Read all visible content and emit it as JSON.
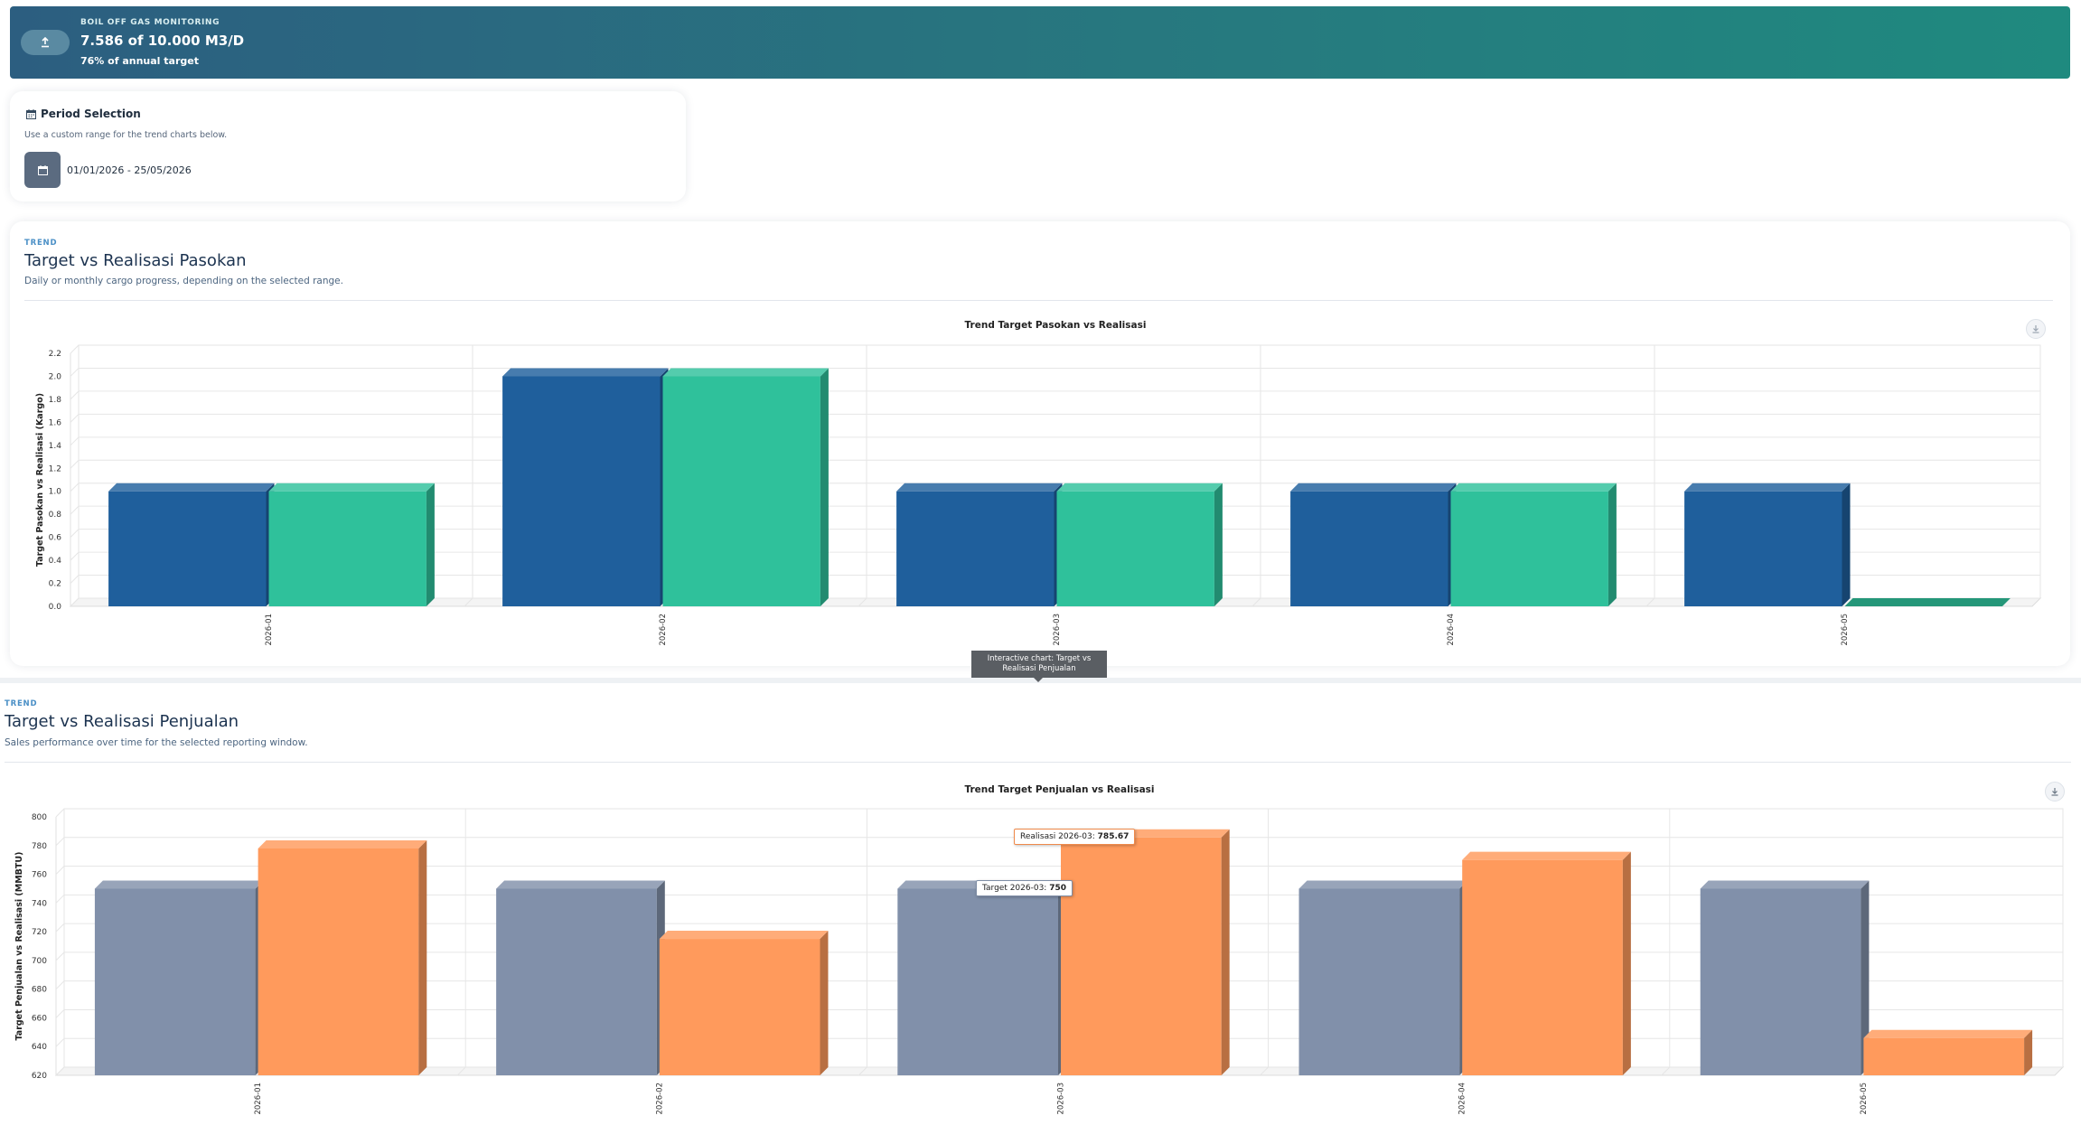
{
  "banner": {
    "label": "BOIL OFF GAS MONITORING",
    "value": "7.586 of 10.000 M3/D",
    "sub": "76% of annual target"
  },
  "period": {
    "title": "Period Selection",
    "help": "Use a custom range for the trend charts below.",
    "range": "01/01/2026 - 25/05/2026"
  },
  "pasokan": {
    "eyebrow": "TREND",
    "title": "Target vs Realisasi Pasokan",
    "subtitle": "Daily or monthly cargo progress, depending on the selected range."
  },
  "penjualan": {
    "eyebrow": "TREND",
    "title": "Target vs Realisasi Penjualan",
    "subtitle": "Sales performance over time for the selected reporting window."
  },
  "hover_tooltip": "Interactive chart: Target vs Realisasi Penjualan",
  "chart_tooltips": {
    "realisasi_label": "Realisasi 2026-03:",
    "realisasi_value": "785.67",
    "target_label": "Target 2026-03:",
    "target_value": "750"
  },
  "icons": {
    "banner": "upload-icon",
    "calendar": "calendar-icon",
    "download": "download-icon"
  },
  "chart_data": [
    {
      "type": "bar",
      "title": "Trend Target Pasokan vs Realisasi",
      "xlabel": "",
      "ylabel": "Target Pasokan vs Realisasi (Kargo)",
      "categories": [
        "2026-01",
        "2026-02",
        "2026-03",
        "2026-04",
        "2026-05"
      ],
      "series": [
        {
          "values": [
            1,
            2,
            1,
            1,
            1
          ],
          "color": "#1f5f9c"
        },
        {
          "values": [
            1,
            2,
            1,
            1,
            0
          ],
          "color": "#2fc19b"
        }
      ],
      "ylim": [
        0,
        2.2
      ],
      "yticks": [
        "0.0",
        "0.2",
        "0.4",
        "0.6",
        "0.8",
        "1.0",
        "1.2",
        "1.4",
        "1.6",
        "1.8",
        "2.0",
        "2.2"
      ],
      "grid": true,
      "style": "3d"
    },
    {
      "type": "bar",
      "title": "Trend Target Penjualan vs Realisasi",
      "xlabel": "",
      "ylabel": "Target Penjualan vs Realisasi (MMBTU)",
      "categories": [
        "2026-01",
        "2026-02",
        "2026-03",
        "2026-04",
        "2026-05"
      ],
      "series": [
        {
          "name": "Target",
          "values": [
            750,
            750,
            750,
            750,
            750
          ],
          "color": "#8190aa"
        },
        {
          "name": "Realisasi",
          "values": [
            778,
            715,
            785.67,
            770,
            646
          ],
          "color": "#ff9a5c"
        }
      ],
      "ylim": [
        620,
        800
      ],
      "yticks": [
        "620",
        "640",
        "660",
        "680",
        "700",
        "720",
        "740",
        "760",
        "780",
        "800"
      ],
      "grid": true,
      "style": "3d"
    }
  ]
}
